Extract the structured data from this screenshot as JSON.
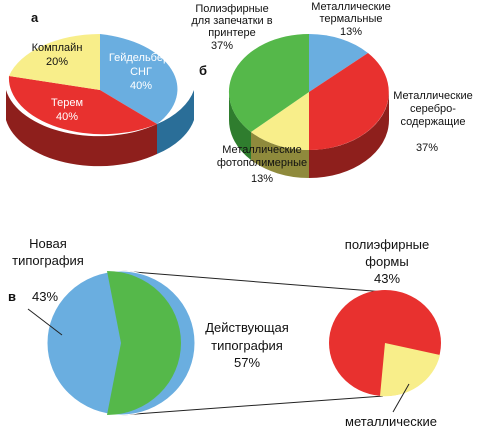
{
  "colors": {
    "blue": "#6aaee0",
    "red": "#e8312f",
    "yellow": "#f8ee8a",
    "green": "#55b84a",
    "blue_side": "#2a6e98",
    "red_side": "#8e1f1c",
    "green_side": "#2f7d2e",
    "yellow_side": "#8f8a3c",
    "line": "#222222"
  },
  "chart_data": [
    {
      "type": "pie",
      "panel": "а",
      "slices": [
        {
          "label_lines": [
            "Гейдельберг",
            "СНГ"
          ],
          "value_text": "40%",
          "value": 40,
          "color": "blue"
        },
        {
          "label_lines": [
            "Терем"
          ],
          "value_text": "40%",
          "value": 40,
          "color": "red"
        },
        {
          "label_lines": [
            "Комплайн"
          ],
          "value_text": "20%",
          "value": 20,
          "color": "yellow"
        }
      ]
    },
    {
      "type": "pie",
      "panel": "б",
      "slices": [
        {
          "label_lines": [
            "Металлические",
            "термальные"
          ],
          "value_text": "13%",
          "value": 13,
          "color": "blue"
        },
        {
          "label_lines": [
            "Металлические",
            "серебро-",
            "содержащие"
          ],
          "value_text": "37%",
          "value": 37,
          "color": "red"
        },
        {
          "label_lines": [
            "Металлические",
            "фотополимерные"
          ],
          "value_text": "13%",
          "value": 13,
          "color": "yellow"
        },
        {
          "label_lines": [
            "Полиэфирные",
            "для запечатки в",
            "принтере"
          ],
          "value_text": "37%",
          "value": 37,
          "color": "green"
        }
      ]
    },
    {
      "type": "pie",
      "panel": "в",
      "slices": [
        {
          "label_lines": [
            "Новая",
            "типография"
          ],
          "value_text": "43%",
          "value": 43,
          "color": "blue"
        },
        {
          "label_lines": [
            "Действующая",
            "типография"
          ],
          "value_text": "57%",
          "value": 57,
          "color": "green"
        }
      ],
      "breakdown": [
        {
          "label_lines": [
            "полиэфирные",
            "формы"
          ],
          "value_text": "43%",
          "color": "red"
        },
        {
          "label_lines": [
            "металлические"
          ],
          "value_text": "",
          "color": "yellow"
        }
      ]
    }
  ]
}
